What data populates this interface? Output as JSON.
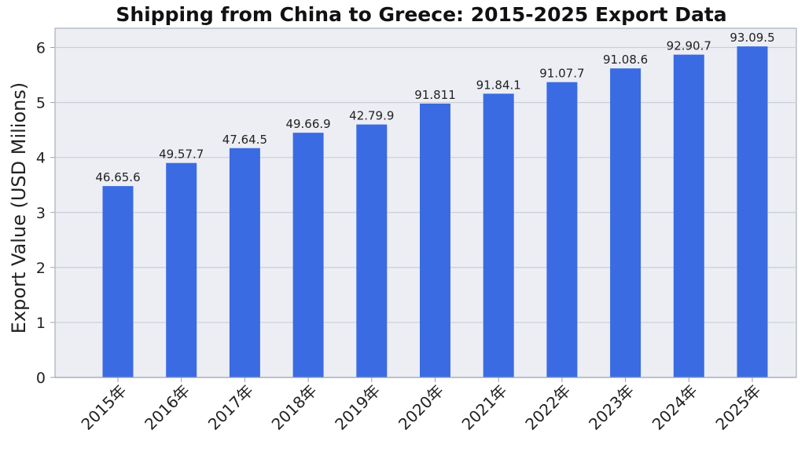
{
  "chart_data": {
    "type": "bar",
    "title": "Shipping from China to Greece: 2015-2025 Export Data",
    "xlabel": "",
    "ylabel": "Export Value (USD Milions)",
    "categories": [
      "2015年",
      "2016年",
      "2017年",
      "2018年",
      "2019年",
      "2020年",
      "2021年",
      "2022年",
      "2023年",
      "2024年",
      "2025年"
    ],
    "values": [
      3.48,
      3.9,
      4.17,
      4.45,
      4.6,
      4.98,
      5.16,
      5.37,
      5.62,
      5.87,
      6.02
    ],
    "data_labels": [
      "46.65.6",
      "49.57.7",
      "47.64.5",
      "49.66.9",
      "42.79.9",
      "91.811",
      "91.84.1",
      "91.07.7",
      "91.08.6",
      "92.90.7",
      "93.09.5"
    ],
    "yticks": [
      0,
      1,
      2,
      3,
      4,
      5,
      6
    ],
    "ylim": [
      0,
      6.35
    ],
    "grid": true,
    "legend": "none",
    "colors": {
      "bar": "#3b6be3",
      "plot_bg": "#eceef4",
      "grid": "#c9ced8",
      "axis": "#9aa0ab"
    }
  }
}
